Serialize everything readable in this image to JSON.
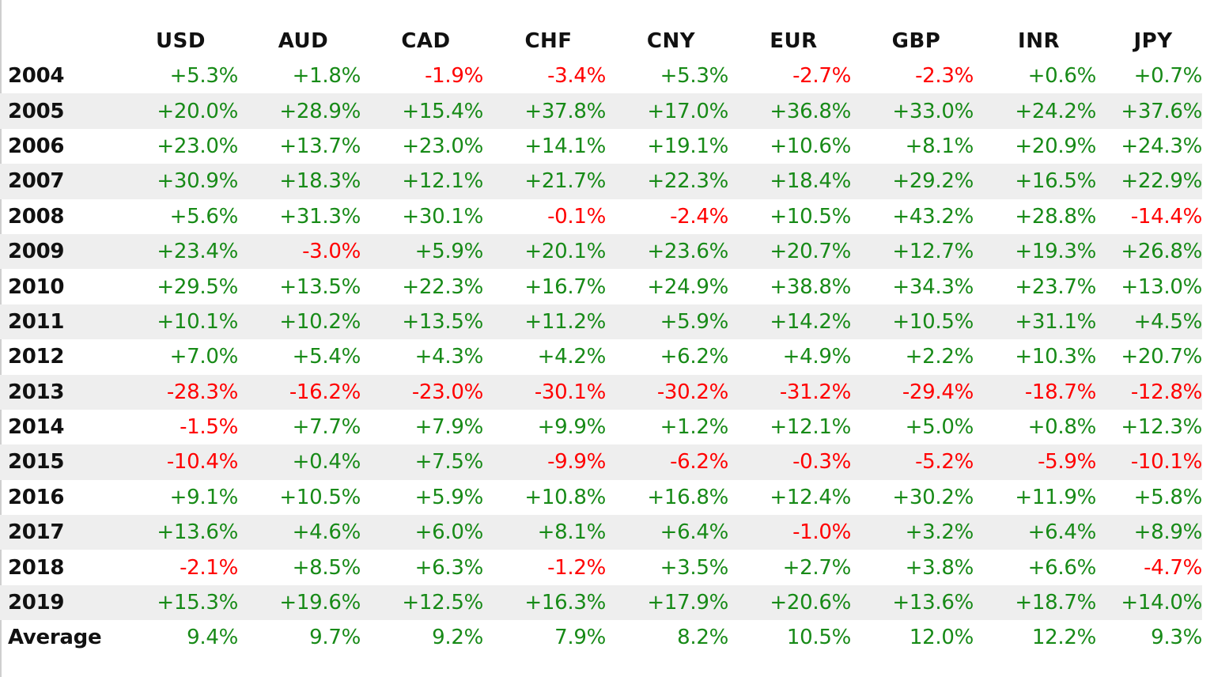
{
  "colors": {
    "positive": "#178a17",
    "negative": "#ff0000",
    "stripe": "#eeeeee"
  },
  "table": {
    "headers": [
      "USD",
      "AUD",
      "CAD",
      "CHF",
      "CNY",
      "EUR",
      "GBP",
      "INR",
      "JPY"
    ],
    "rows": [
      {
        "label": "2004",
        "values": [
          "+5.3%",
          "+1.8%",
          "-1.9%",
          "-3.4%",
          "+5.3%",
          "-2.7%",
          "-2.3%",
          "+0.6%",
          "+0.7%"
        ]
      },
      {
        "label": "2005",
        "values": [
          "+20.0%",
          "+28.9%",
          "+15.4%",
          "+37.8%",
          "+17.0%",
          "+36.8%",
          "+33.0%",
          "+24.2%",
          "+37.6%"
        ]
      },
      {
        "label": "2006",
        "values": [
          "+23.0%",
          "+13.7%",
          "+23.0%",
          "+14.1%",
          "+19.1%",
          "+10.6%",
          "+8.1%",
          "+20.9%",
          "+24.3%"
        ]
      },
      {
        "label": "2007",
        "values": [
          "+30.9%",
          "+18.3%",
          "+12.1%",
          "+21.7%",
          "+22.3%",
          "+18.4%",
          "+29.2%",
          "+16.5%",
          "+22.9%"
        ]
      },
      {
        "label": "2008",
        "values": [
          "+5.6%",
          "+31.3%",
          "+30.1%",
          "-0.1%",
          "-2.4%",
          "+10.5%",
          "+43.2%",
          "+28.8%",
          "-14.4%"
        ]
      },
      {
        "label": "2009",
        "values": [
          "+23.4%",
          "-3.0%",
          "+5.9%",
          "+20.1%",
          "+23.6%",
          "+20.7%",
          "+12.7%",
          "+19.3%",
          "+26.8%"
        ]
      },
      {
        "label": "2010",
        "values": [
          "+29.5%",
          "+13.5%",
          "+22.3%",
          "+16.7%",
          "+24.9%",
          "+38.8%",
          "+34.3%",
          "+23.7%",
          "+13.0%"
        ]
      },
      {
        "label": "2011",
        "values": [
          "+10.1%",
          "+10.2%",
          "+13.5%",
          "+11.2%",
          "+5.9%",
          "+14.2%",
          "+10.5%",
          "+31.1%",
          "+4.5%"
        ]
      },
      {
        "label": "2012",
        "values": [
          "+7.0%",
          "+5.4%",
          "+4.3%",
          "+4.2%",
          "+6.2%",
          "+4.9%",
          "+2.2%",
          "+10.3%",
          "+20.7%"
        ]
      },
      {
        "label": "2013",
        "values": [
          "-28.3%",
          "-16.2%",
          "-23.0%",
          "-30.1%",
          "-30.2%",
          "-31.2%",
          "-29.4%",
          "-18.7%",
          "-12.8%"
        ]
      },
      {
        "label": "2014",
        "values": [
          "-1.5%",
          "+7.7%",
          "+7.9%",
          "+9.9%",
          "+1.2%",
          "+12.1%",
          "+5.0%",
          "+0.8%",
          "+12.3%"
        ]
      },
      {
        "label": "2015",
        "values": [
          "-10.4%",
          "+0.4%",
          "+7.5%",
          "-9.9%",
          "-6.2%",
          "-0.3%",
          "-5.2%",
          "-5.9%",
          "-10.1%"
        ]
      },
      {
        "label": "2016",
        "values": [
          "+9.1%",
          "+10.5%",
          "+5.9%",
          "+10.8%",
          "+16.8%",
          "+12.4%",
          "+30.2%",
          "+11.9%",
          "+5.8%"
        ]
      },
      {
        "label": "2017",
        "values": [
          "+13.6%",
          "+4.6%",
          "+6.0%",
          "+8.1%",
          "+6.4%",
          "-1.0%",
          "+3.2%",
          "+6.4%",
          "+8.9%"
        ]
      },
      {
        "label": "2018",
        "values": [
          "-2.1%",
          "+8.5%",
          "+6.3%",
          "-1.2%",
          "+3.5%",
          "+2.7%",
          "+3.8%",
          "+6.6%",
          "-4.7%"
        ]
      },
      {
        "label": "2019",
        "values": [
          "+15.3%",
          "+19.6%",
          "+12.5%",
          "+16.3%",
          "+17.9%",
          "+20.6%",
          "+13.6%",
          "+18.7%",
          "+14.0%"
        ]
      },
      {
        "label": "Average",
        "values": [
          "9.4%",
          "9.7%",
          "9.2%",
          "7.9%",
          "8.2%",
          "10.5%",
          "12.0%",
          "12.2%",
          "9.3%"
        ]
      }
    ]
  }
}
